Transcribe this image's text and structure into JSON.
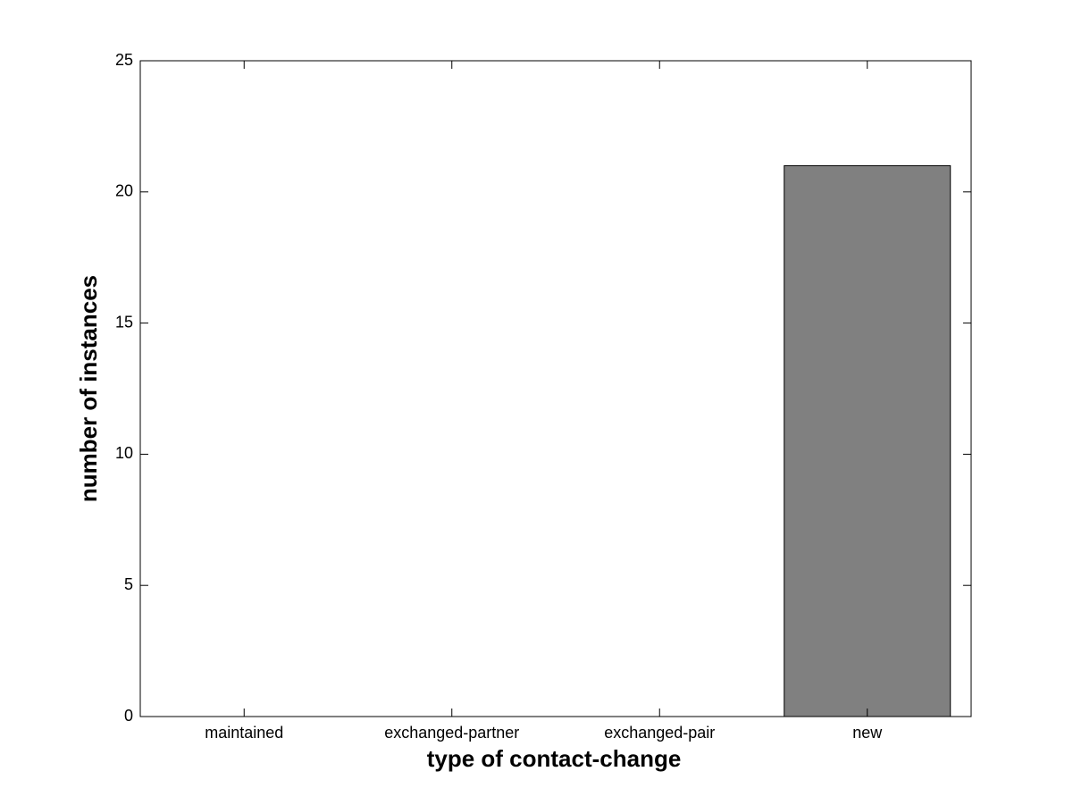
{
  "chart_data": {
    "type": "bar",
    "xlabel": "type of contact-change",
    "ylabel": "number of instances",
    "categories": [
      "maintained",
      "exchanged-partner",
      "exchanged-pair",
      "new"
    ],
    "values": [
      0,
      0,
      0,
      21
    ],
    "color": "#808080",
    "ylim": [
      0,
      25
    ],
    "yticks": [
      0,
      5,
      10,
      15,
      20,
      25
    ],
    "grid": false
  }
}
